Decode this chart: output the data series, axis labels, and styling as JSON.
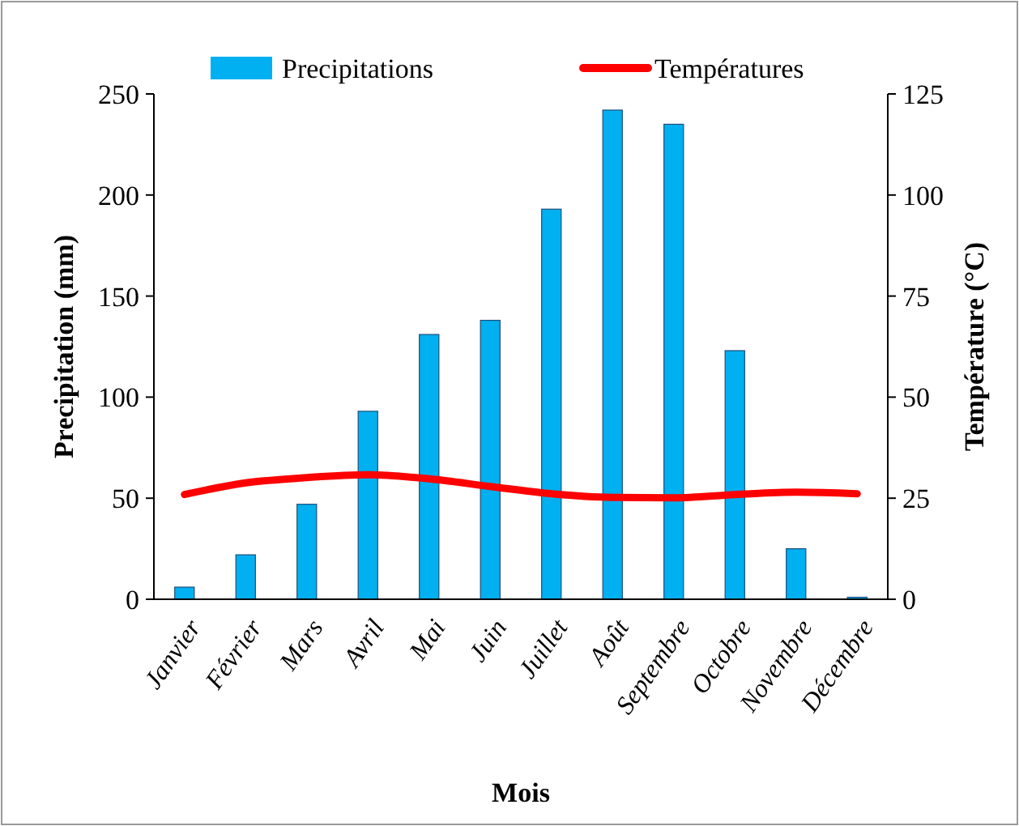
{
  "chart_data": {
    "type": "bar",
    "xlabel": "Mois",
    "ylabel": "Precipitation (mm)",
    "y2label": "Température (°C)",
    "categories": [
      "Janvier",
      "Février",
      "Mars",
      "Avril",
      "Mai",
      "Juin",
      "Juillet",
      "Août",
      "Septembre",
      "Octobre",
      "Novembre",
      "Décembre"
    ],
    "series": [
      {
        "name": "Precipitations",
        "color": "#00b0f0",
        "values": [
          6,
          22,
          47,
          93,
          131,
          138,
          193,
          242,
          235,
          123,
          25,
          1
        ]
      },
      {
        "name": "Températures",
        "type": "line",
        "axis": "y2",
        "color": "#ff0000",
        "values": [
          25.9,
          28.8,
          30.1,
          30.8,
          29.8,
          27.9,
          26.1,
          25.2,
          25.1,
          25.9,
          26.5,
          26.1
        ]
      }
    ],
    "ylim": [
      0,
      250
    ],
    "yticks": [
      0,
      50,
      100,
      150,
      200,
      250
    ],
    "y2lim": [
      0,
      125
    ],
    "y2ticks": [
      0,
      25,
      50,
      75,
      100,
      125
    ],
    "legend": "top",
    "grid": false
  }
}
